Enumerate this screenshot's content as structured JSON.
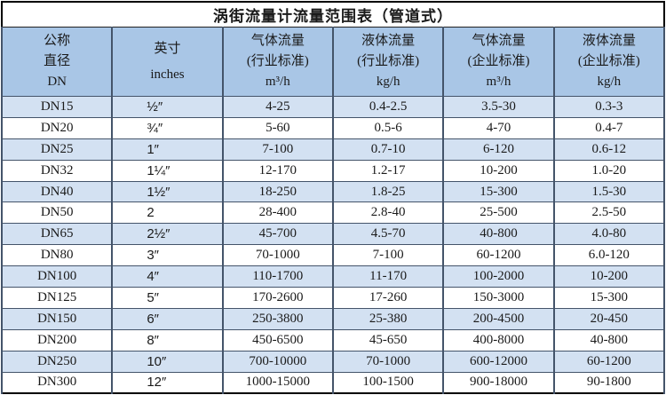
{
  "title": "涡街流量计流量范围表（管道式）",
  "colors": {
    "header_bg": "#a9c6e6",
    "row_shaded_bg": "#d3e1f2",
    "row_plain_bg": "#ffffff",
    "grid_line": "#44546a",
    "outer_border": "#000000"
  },
  "table": {
    "columns": [
      {
        "id": "dn",
        "lines": [
          "公称",
          "直径",
          "DN"
        ]
      },
      {
        "id": "inches",
        "lines": [
          "英寸",
          "inches"
        ]
      },
      {
        "id": "gas-industry",
        "lines": [
          "气体流量",
          "(行业标准)",
          "m³/h"
        ]
      },
      {
        "id": "liquid-industry",
        "lines": [
          "液体流量",
          "(行业标准)",
          "kg/h"
        ]
      },
      {
        "id": "gas-enterprise",
        "lines": [
          "气体流量",
          "(企业标准)",
          "m³/h"
        ]
      },
      {
        "id": "liquid-enterprise",
        "lines": [
          "液体流量",
          "(企业标准)",
          "kg/h"
        ]
      }
    ],
    "rows": [
      [
        "DN15",
        "½″",
        "4-25",
        "0.4-2.5",
        "3.5-30",
        "0.3-3"
      ],
      [
        "DN20",
        "¾″",
        "5-60",
        "0.5-6",
        "4-70",
        "0.4-7"
      ],
      [
        "DN25",
        "1″",
        "7-100",
        "0.7-10",
        "6-120",
        "0.6-12"
      ],
      [
        "DN32",
        "1¼″",
        "12-170",
        "1.2-17",
        "10-200",
        "1.0-20"
      ],
      [
        "DN40",
        "1½″",
        "18-250",
        "1.8-25",
        "15-300",
        "1.5-30"
      ],
      [
        "DN50",
        "2",
        "28-400",
        "2.8-40",
        "25-500",
        "2.5-50"
      ],
      [
        "DN65",
        "2½″",
        "45-700",
        "4.5-70",
        "40-800",
        "4.0-80"
      ],
      [
        "DN80",
        "3″",
        "70-1000",
        "7-100",
        "60-1200",
        "6.0-120"
      ],
      [
        "DN100",
        "4″",
        "110-1700",
        "11-170",
        "100-2000",
        "10-200"
      ],
      [
        "DN125",
        "5″",
        "170-2600",
        "17-260",
        "150-3000",
        "15-300"
      ],
      [
        "DN150",
        "6″",
        "250-3800",
        "25-380",
        "200-4500",
        "20-450"
      ],
      [
        "DN200",
        "8″",
        "450-6500",
        "45-650",
        "400-8000",
        "40-800"
      ],
      [
        "DN250",
        "10″",
        "700-10000",
        "70-1000",
        "600-12000",
        "60-1200"
      ],
      [
        "DN300",
        "12″",
        "1000-15000",
        "100-1500",
        "900-18000",
        "90-1800"
      ]
    ]
  }
}
